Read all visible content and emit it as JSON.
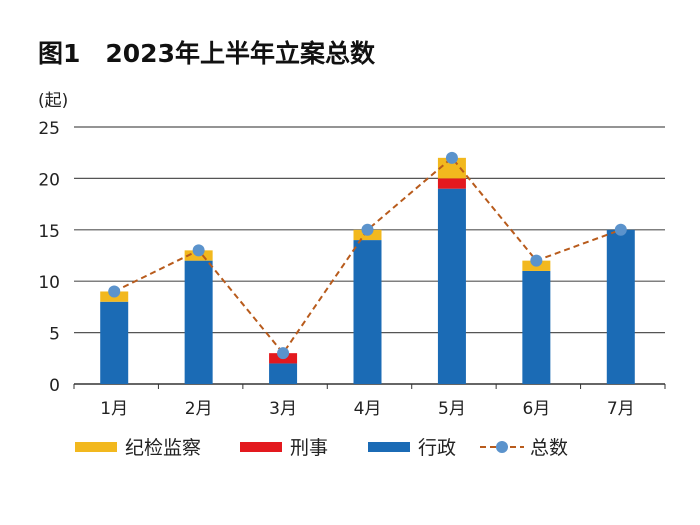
{
  "chart_data": {
    "type": "bar",
    "stacked": true,
    "title": "图1　2023年上半年立案总数",
    "ylabel": "(起)",
    "xlabel": "",
    "ylim": [
      0,
      25
    ],
    "yticks": [
      0,
      5,
      10,
      15,
      20,
      25
    ],
    "grid": true,
    "legend_position": "bottom",
    "categories": [
      "1月",
      "2月",
      "3月",
      "4月",
      "5月",
      "6月",
      "7月"
    ],
    "series": [
      {
        "name": "行政",
        "type": "bar",
        "color": "#1b6bb5",
        "values": [
          8,
          12,
          2,
          14,
          19,
          11,
          15
        ]
      },
      {
        "name": "刑事",
        "type": "bar",
        "color": "#e3191e",
        "values": [
          0,
          0,
          1,
          0,
          1,
          0,
          0
        ]
      },
      {
        "name": "纪检监察",
        "type": "bar",
        "color": "#f2b81e",
        "values": [
          1,
          1,
          0,
          1,
          2,
          1,
          0
        ]
      },
      {
        "name": "总数",
        "type": "line",
        "color": "#b85b1c",
        "marker_color": "#5b93cc",
        "values": [
          9,
          13,
          3,
          15,
          22,
          12,
          15
        ]
      }
    ],
    "legend_order": [
      "纪检监察",
      "刑事",
      "行政",
      "总数"
    ]
  }
}
